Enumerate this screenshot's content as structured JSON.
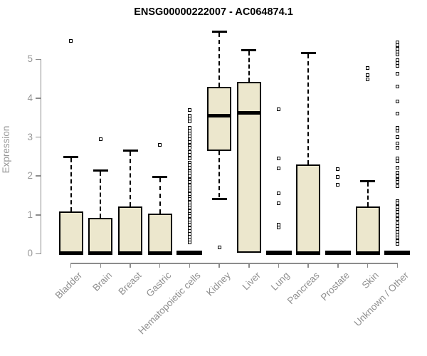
{
  "chart_data": {
    "type": "boxplot",
    "title": "ENSG00000222007 - AC064874.1",
    "ylabel": "Expression",
    "xlabel": "",
    "yticks": [
      0,
      1,
      2,
      3,
      4,
      5
    ],
    "ylim": [
      0,
      5.85
    ],
    "grid": "off",
    "box_fill_color": "#ece7cd",
    "axis_color": "#8c8c8c",
    "categories": [
      "Bladder",
      "Brain",
      "Breast",
      "Gastric",
      "Hematopoietic cells",
      "Kidney",
      "Liver",
      "Lung",
      "Pancreas",
      "Prostate",
      "Skin",
      "Unknown / Other"
    ],
    "boxes": [
      {
        "category": "Bladder",
        "whisker_low": 0,
        "q1": 0,
        "median": 0.02,
        "q3": 1.08,
        "whisker_high": 2.5,
        "outliers": [
          5.47
        ]
      },
      {
        "category": "Brain",
        "whisker_low": 0,
        "q1": 0,
        "median": 0.02,
        "q3": 0.93,
        "whisker_high": 2.15,
        "outliers": [
          2.95
        ]
      },
      {
        "category": "Breast",
        "whisker_low": 0,
        "q1": 0,
        "median": 0.02,
        "q3": 1.22,
        "whisker_high": 2.66,
        "outliers": []
      },
      {
        "category": "Gastric",
        "whisker_low": 0,
        "q1": 0,
        "median": 0.02,
        "q3": 1.03,
        "whisker_high": 1.98,
        "outliers": [
          2.8
        ]
      },
      {
        "category": "Hematopoietic cells",
        "whisker_low": 0,
        "q1": 0,
        "median": 0.02,
        "q3": 0.02,
        "whisker_high": 0.02,
        "outliers": [
          3.7,
          3.55,
          3.47,
          3.4,
          3.24,
          3.16,
          3.09,
          3.02,
          2.94,
          2.87,
          2.79,
          2.72,
          2.61,
          2.54,
          2.46,
          2.35,
          2.28,
          2.21,
          2.13,
          2.06,
          1.99,
          1.91,
          1.84,
          1.76,
          1.69,
          1.62,
          1.54,
          1.47,
          1.4,
          1.32,
          1.25,
          1.18,
          1.1,
          1.03,
          0.96,
          0.88,
          0.81,
          0.74,
          0.66,
          0.59,
          0.51,
          0.44,
          0.37,
          0.29
        ]
      },
      {
        "category": "Kidney",
        "whisker_low": 1.42,
        "q1": 2.64,
        "median": 3.56,
        "q3": 4.3,
        "whisker_high": 5.72,
        "outliers": [
          0.16
        ]
      },
      {
        "category": "Liver",
        "whisker_low": 0,
        "q1": 0.02,
        "median": 3.63,
        "q3": 4.42,
        "whisker_high": 5.24,
        "outliers": []
      },
      {
        "category": "Lung",
        "whisker_low": 0,
        "q1": 0,
        "median": 0.02,
        "q3": 0.02,
        "whisker_high": 0.02,
        "outliers": [
          3.72,
          2.46,
          2.19,
          1.56,
          1.29,
          0.75,
          0.68
        ]
      },
      {
        "category": "Pancreas",
        "whisker_low": 0,
        "q1": 0,
        "median": 0.02,
        "q3": 2.29,
        "whisker_high": 5.18,
        "outliers": []
      },
      {
        "category": "Prostate",
        "whisker_low": 0,
        "q1": 0,
        "median": 0.02,
        "q3": 0.02,
        "whisker_high": 0.02,
        "outliers": [
          2.17,
          1.98,
          1.77
        ]
      },
      {
        "category": "Skin",
        "whisker_low": 0,
        "q1": 0,
        "median": 0.02,
        "q3": 1.21,
        "whisker_high": 1.87,
        "outliers": [
          4.78,
          4.6,
          4.48
        ]
      },
      {
        "category": "Unknown / Other",
        "whisker_low": 0,
        "q1": 0,
        "median": 0.02,
        "q3": 0.02,
        "whisker_high": 0.02,
        "outliers": [
          5.44,
          5.36,
          5.28,
          5.2,
          5.13,
          4.98,
          4.9,
          4.83,
          4.63,
          4.3,
          3.91,
          3.6,
          3.24,
          3.16,
          3.0,
          2.83,
          2.72,
          2.46,
          2.37,
          2.22,
          2.08,
          1.99,
          1.91,
          1.84,
          1.73,
          1.36,
          1.29,
          1.21,
          1.14,
          1.07,
          0.99,
          0.9,
          0.79,
          0.72,
          0.64,
          0.57,
          0.5,
          0.42,
          0.33,
          0.26
        ]
      }
    ]
  }
}
